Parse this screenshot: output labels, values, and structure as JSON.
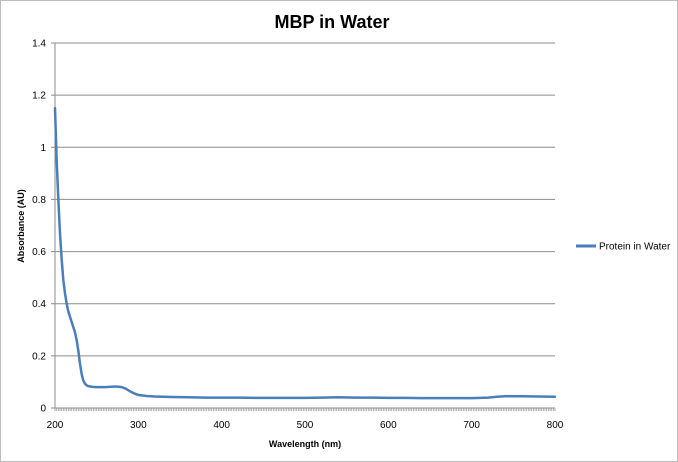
{
  "chart_data": {
    "type": "line",
    "title": "MBP in Water",
    "xlabel": "Wavelength (nm)",
    "ylabel": "Absorbance (AU)",
    "xlim": [
      200,
      800
    ],
    "ylim": [
      0,
      1.4
    ],
    "x_ticks": [
      "200",
      "300",
      "400",
      "500",
      "600",
      "700",
      "800"
    ],
    "y_ticks": [
      "0",
      "0.2",
      "0.4",
      "0.6",
      "0.8",
      "1",
      "1.2",
      "1.4"
    ],
    "grid": true,
    "legend": "right",
    "series": [
      {
        "name": "Protein in Water",
        "color": "#4a7ebb",
        "x": [
          200,
          202,
          204,
          206,
          208,
          210,
          212,
          214,
          216,
          218,
          220,
          222,
          224,
          226,
          228,
          230,
          232,
          234,
          236,
          238,
          240,
          245,
          250,
          255,
          260,
          265,
          270,
          275,
          280,
          285,
          290,
          295,
          300,
          310,
          320,
          340,
          360,
          380,
          400,
          420,
          440,
          460,
          480,
          500,
          520,
          540,
          560,
          580,
          600,
          620,
          640,
          660,
          680,
          700,
          720,
          730,
          740,
          760,
          780,
          800
        ],
        "values": [
          1.15,
          0.95,
          0.8,
          0.67,
          0.57,
          0.49,
          0.44,
          0.4,
          0.37,
          0.35,
          0.33,
          0.31,
          0.29,
          0.26,
          0.22,
          0.17,
          0.13,
          0.105,
          0.093,
          0.087,
          0.084,
          0.081,
          0.08,
          0.08,
          0.08,
          0.081,
          0.082,
          0.082,
          0.08,
          0.074,
          0.064,
          0.056,
          0.05,
          0.046,
          0.044,
          0.042,
          0.041,
          0.04,
          0.04,
          0.04,
          0.039,
          0.039,
          0.039,
          0.039,
          0.04,
          0.041,
          0.04,
          0.04,
          0.039,
          0.039,
          0.038,
          0.038,
          0.038,
          0.038,
          0.04,
          0.043,
          0.045,
          0.045,
          0.044,
          0.043
        ]
      }
    ]
  }
}
